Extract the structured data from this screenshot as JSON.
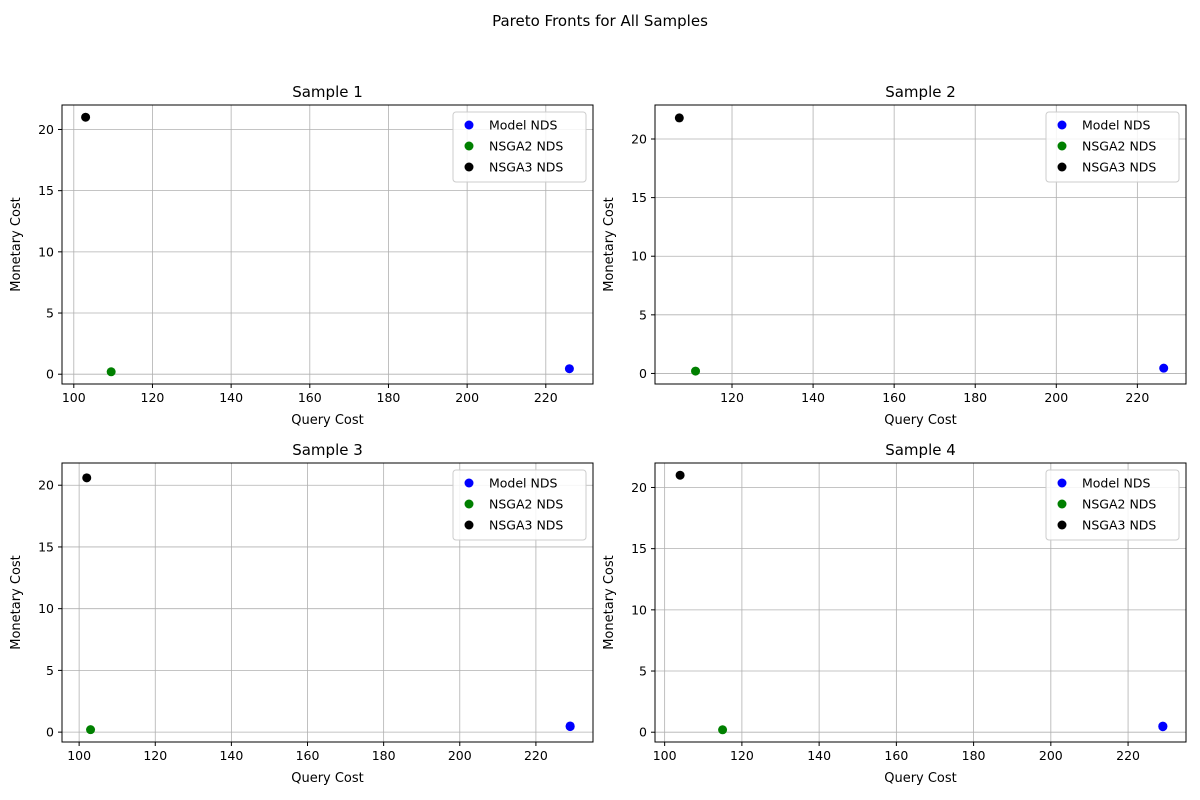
{
  "figure": {
    "title": "Pareto Fronts for All Samples"
  },
  "colors": {
    "model": "#0000ff",
    "nsga2": "#008000",
    "nsga3": "#000000",
    "grid": "#b0b0b0"
  },
  "chart_data": [
    {
      "type": "scatter",
      "title": "Sample 1",
      "xlabel": "Query Cost",
      "ylabel": "Monetary Cost",
      "xlim": [
        97,
        232
      ],
      "ylim": [
        -0.8,
        22.0
      ],
      "xticks": [
        100,
        120,
        140,
        160,
        180,
        200,
        220
      ],
      "yticks": [
        0,
        5,
        10,
        15,
        20
      ],
      "grid": true,
      "legend_position": "top-right",
      "series": [
        {
          "name": "Model NDS",
          "color": "#0000ff",
          "points": [
            [
              226,
              0.45
            ]
          ]
        },
        {
          "name": "NSGA2 NDS",
          "color": "#008000",
          "points": [
            [
              109.5,
              0.2
            ]
          ]
        },
        {
          "name": "NSGA3 NDS",
          "color": "#000000",
          "points": [
            [
              103,
              21.0
            ]
          ]
        }
      ]
    },
    {
      "type": "scatter",
      "title": "Sample 2",
      "xlabel": "Query Cost",
      "ylabel": "Monetary Cost",
      "xlim": [
        101,
        232
      ],
      "ylim": [
        -0.9,
        22.9
      ],
      "xticks": [
        120,
        140,
        160,
        180,
        200,
        220
      ],
      "yticks": [
        0,
        5,
        10,
        15,
        20
      ],
      "grid": true,
      "legend_position": "top-right",
      "series": [
        {
          "name": "Model NDS",
          "color": "#0000ff",
          "points": [
            [
              226.5,
              0.45
            ]
          ]
        },
        {
          "name": "NSGA2 NDS",
          "color": "#008000",
          "points": [
            [
              111,
              0.2
            ]
          ]
        },
        {
          "name": "NSGA3 NDS",
          "color": "#000000",
          "points": [
            [
              107,
              21.8
            ]
          ]
        }
      ]
    },
    {
      "type": "scatter",
      "title": "Sample 3",
      "xlabel": "Query Cost",
      "ylabel": "Monetary Cost",
      "xlim": [
        95.5,
        235
      ],
      "ylim": [
        -0.8,
        21.8
      ],
      "xticks": [
        100,
        120,
        140,
        160,
        180,
        200,
        220
      ],
      "yticks": [
        0,
        5,
        10,
        15,
        20
      ],
      "grid": true,
      "legend_position": "top-right",
      "series": [
        {
          "name": "Model NDS",
          "color": "#0000ff",
          "points": [
            [
              229,
              0.45
            ],
            [
              229,
              0.5
            ]
          ]
        },
        {
          "name": "NSGA2 NDS",
          "color": "#008000",
          "points": [
            [
              103,
              0.2
            ]
          ]
        },
        {
          "name": "NSGA3 NDS",
          "color": "#000000",
          "points": [
            [
              102,
              20.6
            ]
          ]
        }
      ]
    },
    {
      "type": "scatter",
      "title": "Sample 4",
      "xlabel": "Query Cost",
      "ylabel": "Monetary Cost",
      "xlim": [
        97.5,
        235
      ],
      "ylim": [
        -0.8,
        22.0
      ],
      "xticks": [
        100,
        120,
        140,
        160,
        180,
        200,
        220
      ],
      "yticks": [
        0,
        5,
        10,
        15,
        20
      ],
      "grid": true,
      "legend_position": "top-right",
      "series": [
        {
          "name": "Model NDS",
          "color": "#0000ff",
          "points": [
            [
              229,
              0.45
            ],
            [
              229,
              0.5
            ]
          ]
        },
        {
          "name": "NSGA2 NDS",
          "color": "#008000",
          "points": [
            [
              115,
              0.2
            ]
          ]
        },
        {
          "name": "NSGA3 NDS",
          "color": "#000000",
          "points": [
            [
              104,
              21.0
            ]
          ]
        }
      ]
    }
  ]
}
